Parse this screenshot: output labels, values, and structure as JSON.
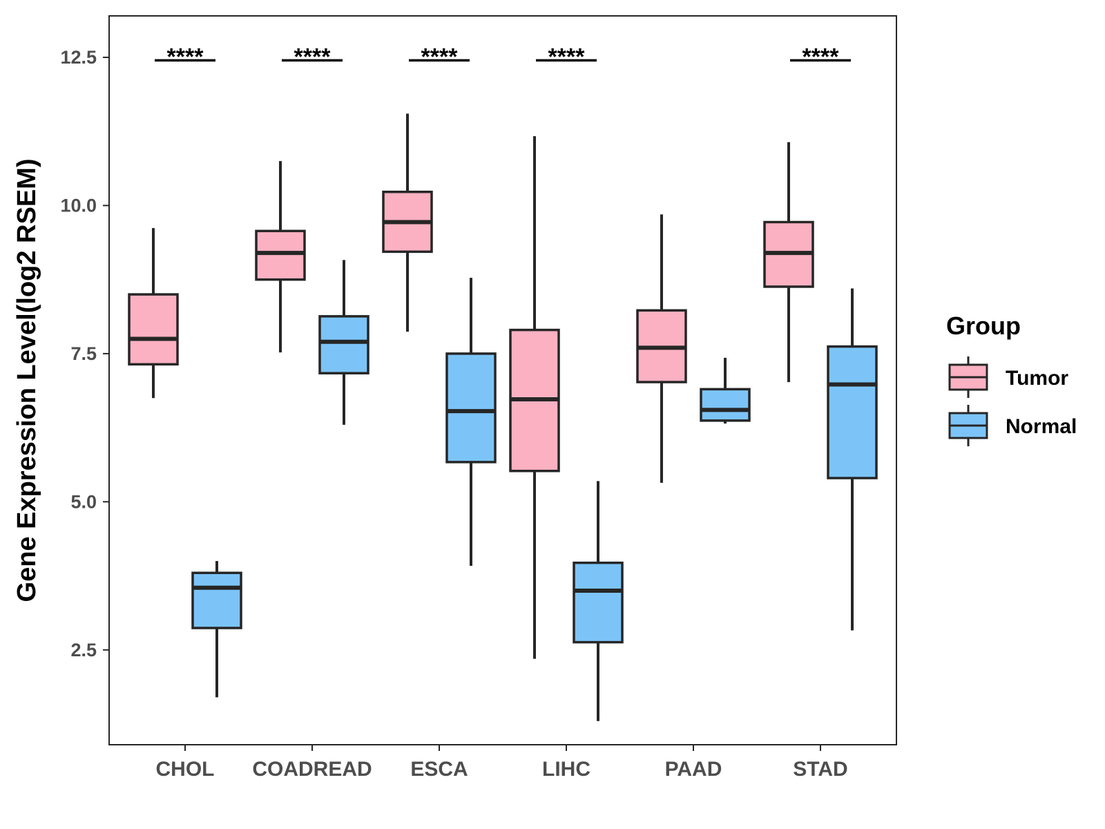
{
  "chart_data": {
    "type": "boxplot",
    "title": "",
    "xlabel": "",
    "ylabel": "Gene Expression Level(log2 RSEM)",
    "ylim": [
      0.9,
      13.2
    ],
    "yticks": [
      2.5,
      5.0,
      7.5,
      10.0,
      12.5
    ],
    "ytick_labels": [
      "2.5",
      "5.0",
      "7.5",
      "10.0",
      "12.5"
    ],
    "categories": [
      "CHOL",
      "COADREAD",
      "ESCA",
      "LIHC",
      "PAAD",
      "STAD"
    ],
    "grid": false,
    "legend": {
      "title": "Group",
      "position": "right",
      "entries": [
        "Tumor",
        "Normal"
      ]
    },
    "series": [
      {
        "name": "Tumor",
        "color": "#FBB1C2",
        "boxes": [
          {
            "category": "CHOL",
            "min": 6.75,
            "q1": 7.32,
            "median": 7.75,
            "q3": 8.5,
            "max": 9.62
          },
          {
            "category": "COADREAD",
            "min": 7.52,
            "q1": 8.75,
            "median": 9.2,
            "q3": 9.57,
            "max": 10.75
          },
          {
            "category": "ESCA",
            "min": 7.87,
            "q1": 9.22,
            "median": 9.72,
            "q3": 10.23,
            "max": 11.55
          },
          {
            "category": "LIHC",
            "min": 2.35,
            "q1": 5.52,
            "median": 6.73,
            "q3": 7.9,
            "max": 11.17
          },
          {
            "category": "PAAD",
            "min": 5.32,
            "q1": 7.02,
            "median": 7.6,
            "q3": 8.23,
            "max": 9.85
          },
          {
            "category": "STAD",
            "min": 7.02,
            "q1": 8.63,
            "median": 9.2,
            "q3": 9.72,
            "max": 11.07
          }
        ]
      },
      {
        "name": "Normal",
        "color": "#7CC4F8",
        "boxes": [
          {
            "category": "CHOL",
            "min": 1.7,
            "q1": 2.87,
            "median": 3.55,
            "q3": 3.8,
            "max": 4.0
          },
          {
            "category": "COADREAD",
            "min": 6.3,
            "q1": 7.17,
            "median": 7.7,
            "q3": 8.13,
            "max": 9.08
          },
          {
            "category": "ESCA",
            "min": 3.92,
            "q1": 5.67,
            "median": 6.53,
            "q3": 7.5,
            "max": 8.78
          },
          {
            "category": "LIHC",
            "min": 1.3,
            "q1": 2.63,
            "median": 3.5,
            "q3": 3.97,
            "max": 5.35
          },
          {
            "category": "PAAD",
            "min": 6.32,
            "q1": 6.37,
            "median": 6.55,
            "q3": 6.9,
            "max": 7.43
          },
          {
            "category": "STAD",
            "min": 2.83,
            "q1": 5.4,
            "median": 6.98,
            "q3": 7.62,
            "max": 8.6
          }
        ]
      }
    ],
    "annotations": [
      {
        "category": "CHOL",
        "text": "****",
        "y": 12.45
      },
      {
        "category": "COADREAD",
        "text": "****",
        "y": 12.45
      },
      {
        "category": "ESCA",
        "text": "****",
        "y": 12.45
      },
      {
        "category": "LIHC",
        "text": "****",
        "y": 12.45
      },
      {
        "category": "STAD",
        "text": "****",
        "y": 12.45
      }
    ]
  }
}
